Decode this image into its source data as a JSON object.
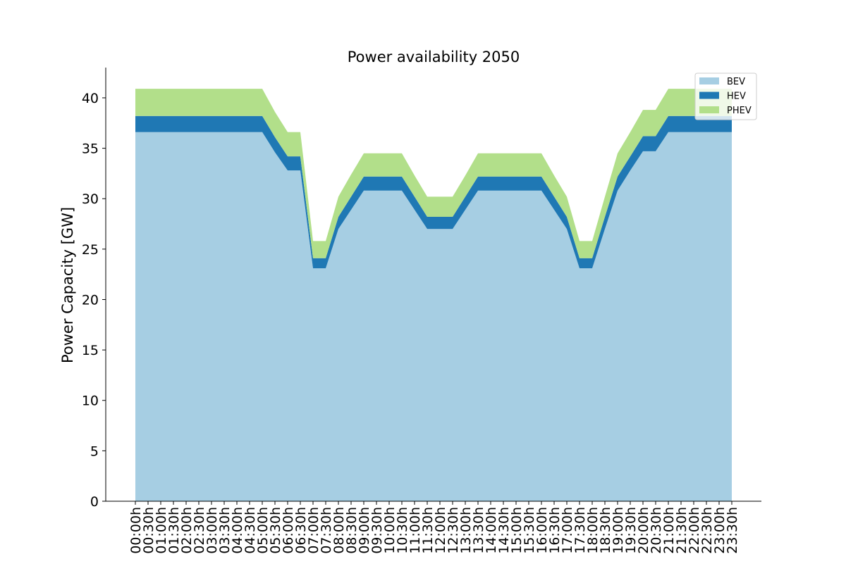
{
  "chart_data": {
    "type": "area",
    "stacked": true,
    "title": "Power availability 2050",
    "xlabel": "",
    "ylabel": "Power Capacity [GW]",
    "ylim": [
      0,
      43
    ],
    "yticks": [
      0,
      5,
      10,
      15,
      20,
      25,
      30,
      35,
      40
    ],
    "grid": false,
    "legend_position": "top-right",
    "x": [
      "00:00h",
      "00:30h",
      "01:00h",
      "01:30h",
      "02:00h",
      "02:30h",
      "03:00h",
      "03:30h",
      "04:00h",
      "04:30h",
      "05:00h",
      "05:30h",
      "06:00h",
      "06:30h",
      "07:00h",
      "07:30h",
      "08:00h",
      "08:30h",
      "09:00h",
      "09:30h",
      "10:00h",
      "10:30h",
      "11:00h",
      "11:30h",
      "12:00h",
      "12:30h",
      "13:00h",
      "13:30h",
      "14:00h",
      "14:30h",
      "15:00h",
      "15:30h",
      "16:00h",
      "16:30h",
      "17:00h",
      "17:30h",
      "18:00h",
      "18:30h",
      "19:00h",
      "19:30h",
      "20:00h",
      "20:30h",
      "21:00h",
      "21:30h",
      "22:00h",
      "22:30h",
      "23:00h",
      "23:30h"
    ],
    "series": [
      {
        "name": "BEV",
        "color": "#a6cee3",
        "values": [
          36.6,
          36.6,
          36.6,
          36.6,
          36.6,
          36.6,
          36.6,
          36.6,
          36.6,
          36.6,
          36.6,
          34.6,
          32.8,
          32.8,
          23.1,
          23.1,
          27.0,
          28.9,
          30.8,
          30.8,
          30.8,
          30.8,
          28.9,
          27.0,
          27.0,
          27.0,
          28.9,
          30.8,
          30.8,
          30.8,
          30.8,
          30.8,
          30.8,
          28.9,
          27.0,
          23.1,
          23.1,
          27.0,
          30.8,
          32.8,
          34.7,
          34.7,
          36.6,
          36.6,
          36.6,
          36.6,
          36.6,
          36.6
        ]
      },
      {
        "name": "HEV",
        "color": "#1f78b4",
        "values": [
          1.6,
          1.6,
          1.6,
          1.6,
          1.6,
          1.6,
          1.6,
          1.6,
          1.6,
          1.6,
          1.6,
          1.5,
          1.4,
          1.4,
          1.0,
          1.0,
          1.2,
          1.3,
          1.4,
          1.4,
          1.4,
          1.4,
          1.3,
          1.2,
          1.2,
          1.2,
          1.3,
          1.4,
          1.4,
          1.4,
          1.4,
          1.4,
          1.4,
          1.3,
          1.2,
          1.0,
          1.0,
          1.2,
          1.4,
          1.4,
          1.5,
          1.5,
          1.6,
          1.6,
          1.6,
          1.6,
          1.6,
          1.6
        ]
      },
      {
        "name": "PHEV",
        "color": "#b2df8a",
        "values": [
          2.7,
          2.7,
          2.7,
          2.7,
          2.7,
          2.7,
          2.7,
          2.7,
          2.7,
          2.7,
          2.7,
          2.5,
          2.4,
          2.4,
          1.7,
          1.7,
          2.0,
          2.2,
          2.3,
          2.3,
          2.3,
          2.3,
          2.1,
          2.0,
          2.0,
          2.0,
          2.1,
          2.3,
          2.3,
          2.3,
          2.3,
          2.3,
          2.3,
          2.1,
          2.0,
          1.7,
          1.7,
          2.0,
          2.3,
          2.4,
          2.6,
          2.6,
          2.7,
          2.7,
          2.7,
          2.7,
          2.7,
          2.7
        ]
      }
    ]
  }
}
